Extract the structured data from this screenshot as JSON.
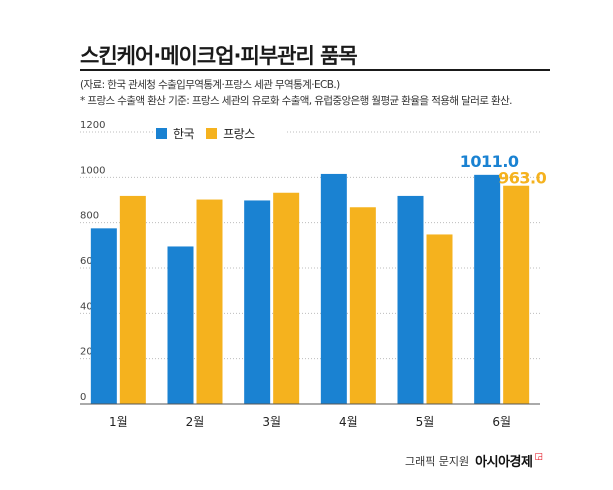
{
  "title": "스킨케어·메이크업·피부관리 품목",
  "source": "(자료: 한국 관세청 수출입무역통계·프랑스 세관 무역통계·ECB.)",
  "note": "* 프랑스 수출액 환산 기준: 프랑스 세관의 유로화 수출액, 유럽중앙은행 월평균 환율을 적용해 달러로 환산.",
  "credit": {
    "prefix": "그래픽 문지원",
    "brand": "아시아경제"
  },
  "colors": {
    "korea": "#1a82d2",
    "france": "#f5b21e",
    "grid": "#bdbdbd",
    "axis": "#555555"
  },
  "chart_data": {
    "type": "bar",
    "title": "스킨케어·메이크업·피부관리 품목",
    "categories": [
      "1월",
      "2월",
      "3월",
      "4월",
      "5월",
      "6월"
    ],
    "series": [
      {
        "name": "한국",
        "values": [
          775,
          695,
          898,
          1015,
          918,
          1011.0
        ]
      },
      {
        "name": "프랑스",
        "values": [
          918,
          902,
          932,
          868,
          748,
          963.0
        ]
      }
    ],
    "data_labels": [
      {
        "series": "한국",
        "category": "6월",
        "text": "1011.0"
      },
      {
        "series": "프랑스",
        "category": "6월",
        "text": "963.0"
      }
    ],
    "yticks": [
      "0",
      "200",
      "400",
      "600",
      "800",
      "1000",
      "1200"
    ],
    "ylim": [
      0,
      1200
    ],
    "grid": true,
    "legend": "top-left"
  }
}
